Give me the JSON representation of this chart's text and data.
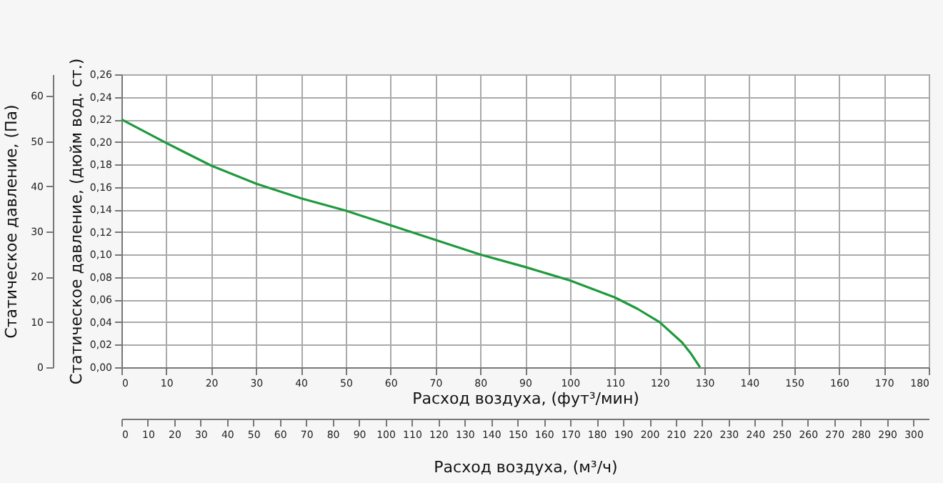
{
  "chart_data": {
    "type": "line",
    "xlabel": "Расход воздуха, (фут³/мин)",
    "ylabel": "Статическое давление, (дюйм вод. ст.)",
    "y2label": "Статическое давление, (Па)",
    "x2label": "Расход воздуха, (м³/ч)",
    "x": [
      0,
      10,
      20,
      30,
      40,
      50,
      60,
      70,
      80,
      90,
      100,
      110,
      115,
      120,
      125,
      127,
      129
    ],
    "series": [
      {
        "color": "#1e9a3c",
        "values": [
          0.22,
          0.199,
          0.179,
          0.163,
          0.15,
          0.139,
          0.126,
          0.113,
          0.1,
          0.089,
          0.077,
          0.062,
          0.052,
          0.04,
          0.022,
          0.012,
          0
        ]
      }
    ],
    "xlim": [
      0,
      180
    ],
    "xticks": [
      0,
      10,
      20,
      30,
      40,
      50,
      60,
      70,
      80,
      90,
      100,
      110,
      120,
      130,
      140,
      150,
      160,
      170,
      180
    ],
    "ylim": [
      0,
      0.26
    ],
    "yticks": [
      {
        "value": 0,
        "label": "0,00"
      },
      {
        "value": 0.02,
        "label": "0,02"
      },
      {
        "value": 0.04,
        "label": "0,04"
      },
      {
        "value": 0.06,
        "label": "0,06"
      },
      {
        "value": 0.08,
        "label": "0,08"
      },
      {
        "value": 0.1,
        "label": "0,10"
      },
      {
        "value": 0.12,
        "label": "0,12"
      },
      {
        "value": 0.14,
        "label": "0,14"
      },
      {
        "value": 0.16,
        "label": "0,16"
      },
      {
        "value": 0.18,
        "label": "0,18"
      },
      {
        "value": 0.2,
        "label": "0,20"
      },
      {
        "value": 0.22,
        "label": "0,22"
      },
      {
        "value": 0.24,
        "label": "0,24"
      },
      {
        "value": 0.26,
        "label": "0,26"
      }
    ],
    "y2lim": [
      0,
      64.8
    ],
    "y2ticks": [
      0,
      10,
      20,
      30,
      40,
      50,
      60
    ],
    "x2lim": [
      0,
      305.8
    ],
    "x2ticks": [
      0,
      10,
      20,
      30,
      40,
      50,
      60,
      70,
      80,
      90,
      100,
      110,
      120,
      130,
      140,
      150,
      160,
      170,
      180,
      190,
      200,
      210,
      220,
      230,
      240,
      250,
      260,
      270,
      280,
      290,
      300
    ],
    "grid": true,
    "marker": "none",
    "line_style": "solid"
  }
}
